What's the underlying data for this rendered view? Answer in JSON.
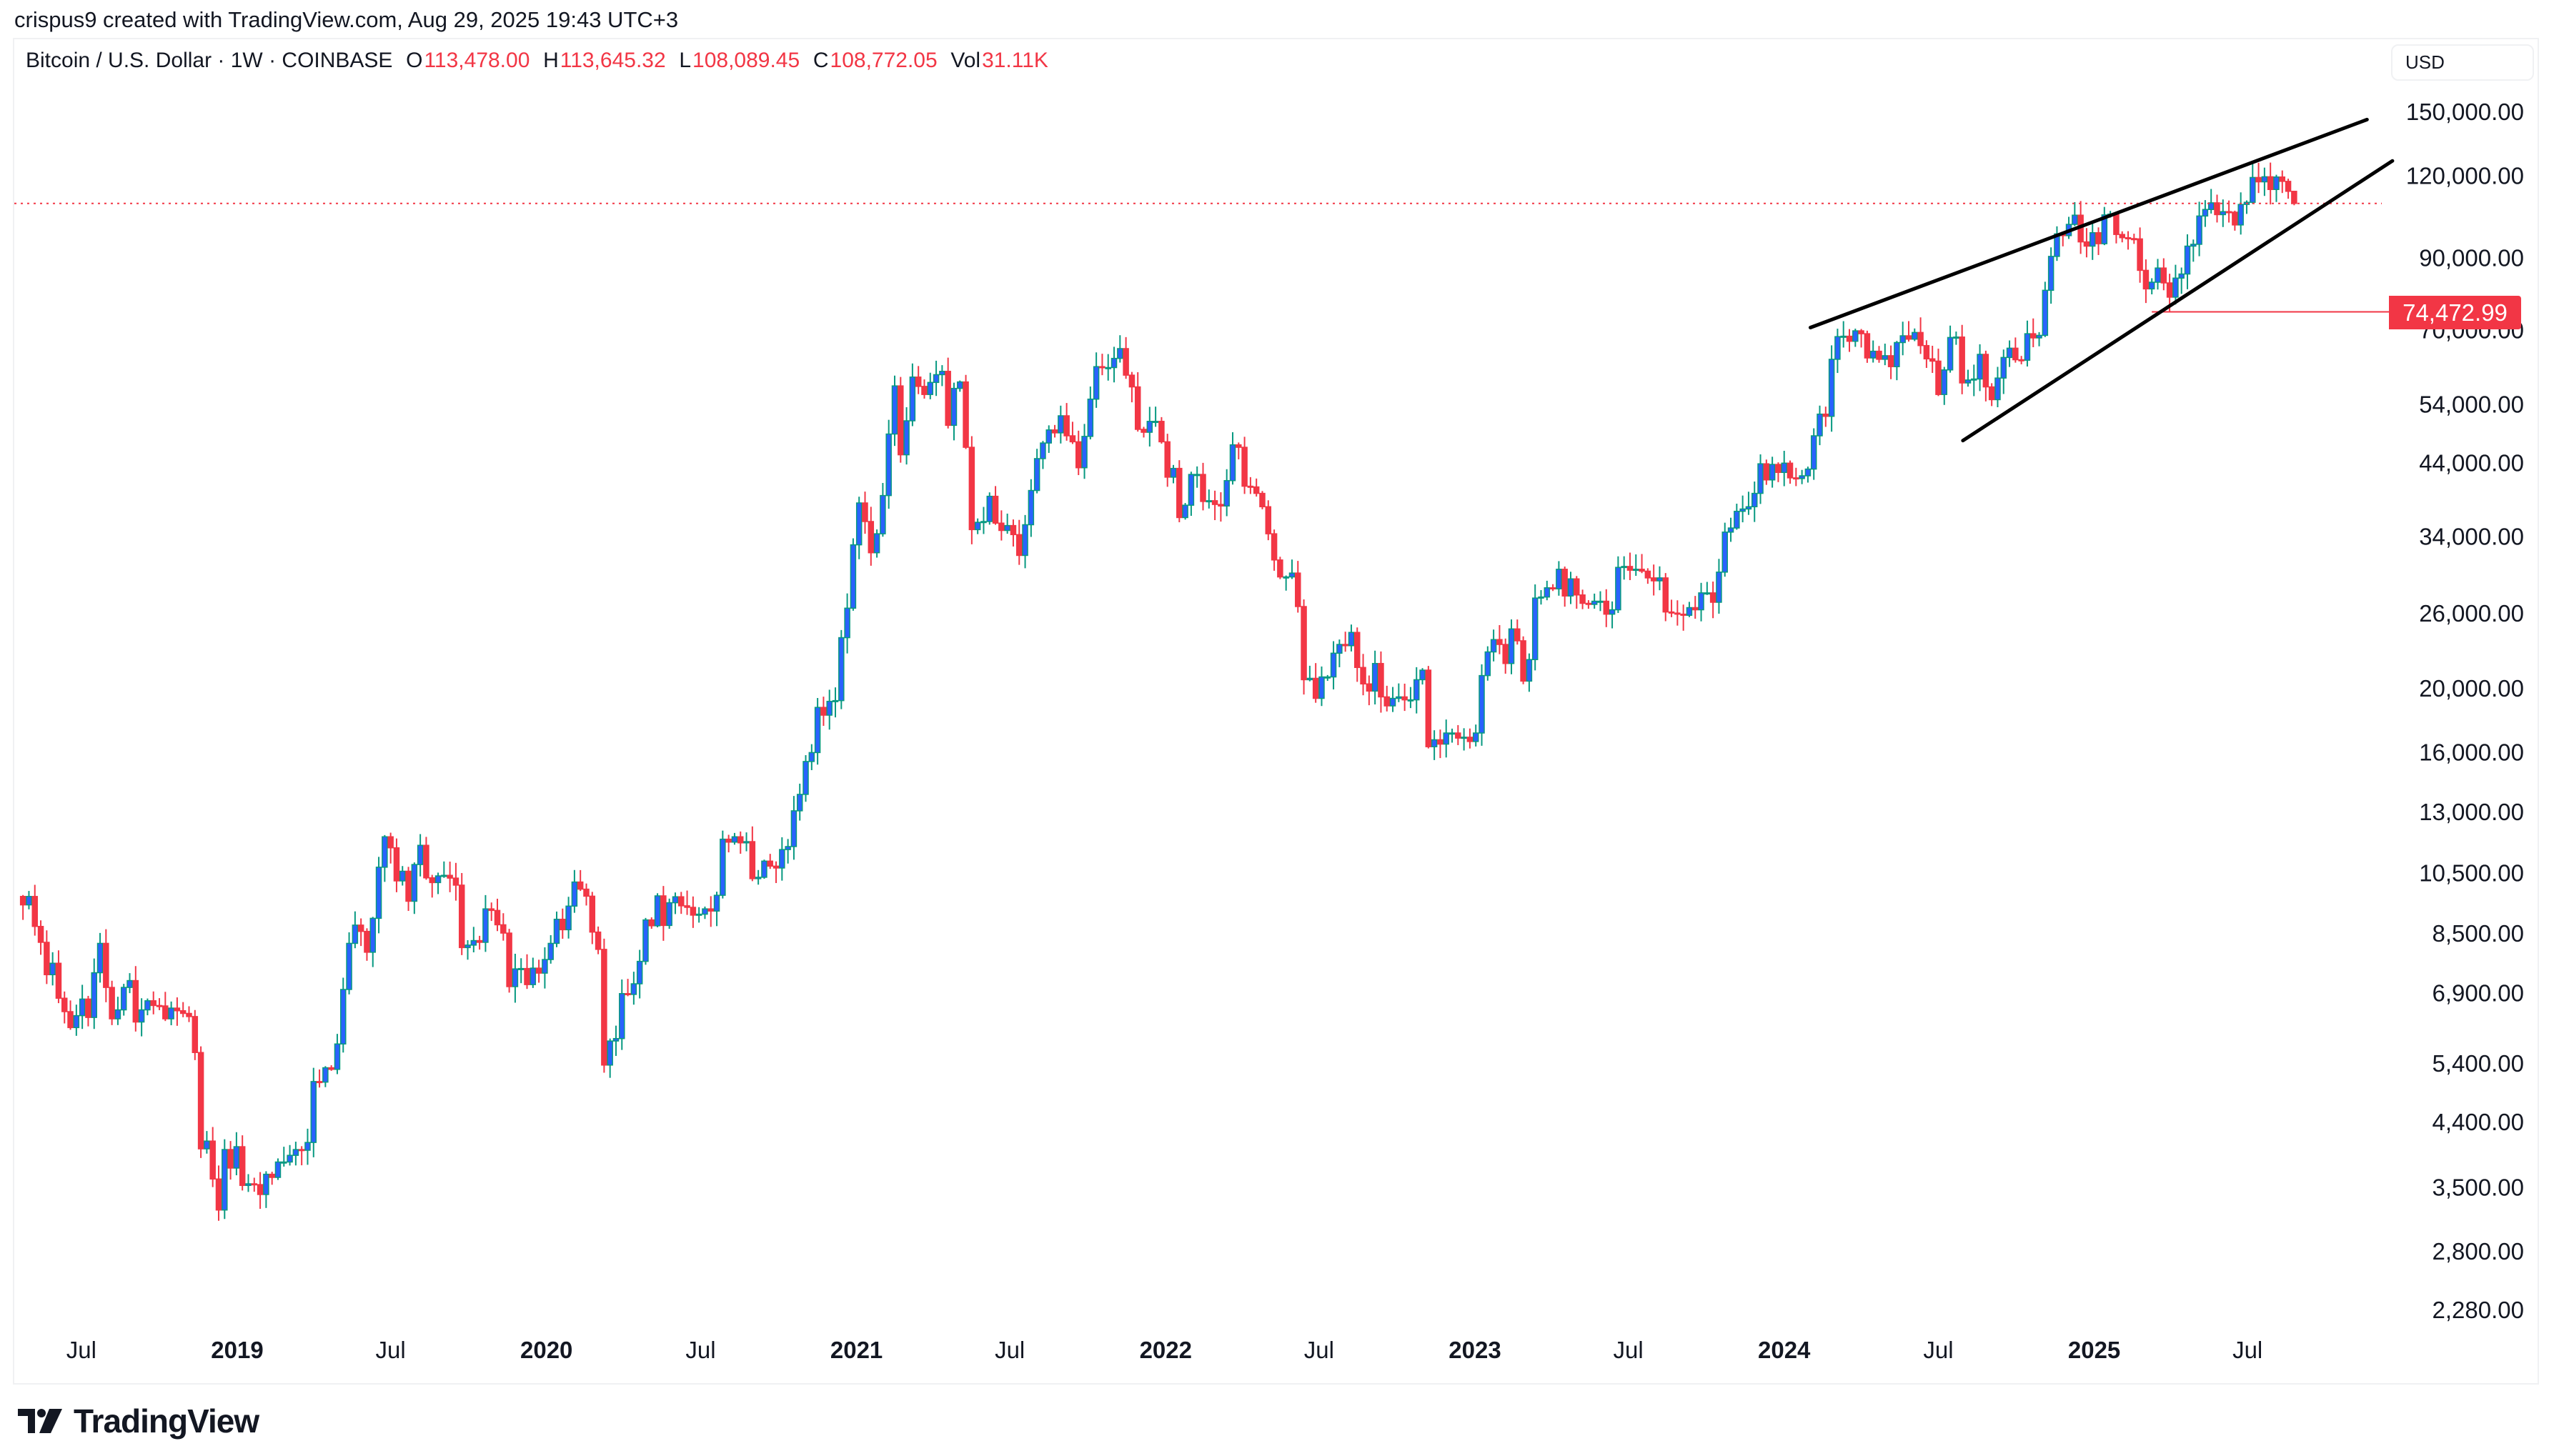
{
  "credit": "crispus9 created with TradingView.com, Aug 29, 2025 19:43 UTC+3",
  "legend": {
    "symbol": "Bitcoin / U.S. Dollar · 1W · COINBASE",
    "o_label": "O",
    "o": "113,478.00",
    "h_label": "H",
    "h": "113,645.32",
    "l_label": "L",
    "l": "108,089.45",
    "c_label": "C",
    "c": "108,772.05",
    "vol_label": "Vol",
    "vol": "31.11K"
  },
  "currency_button": "USD",
  "logo_text": "TradingView",
  "colors": {
    "up_body": "#2962ff",
    "up_border": "#089981",
    "down": "#f23645",
    "trendline": "#000000"
  },
  "chart_data": {
    "type": "candlestick",
    "interval": "1W",
    "y_scale": "log",
    "ylim": [
      2000,
      175000
    ],
    "y_ticks": [
      150000,
      120000,
      90000,
      70000,
      54000,
      44000,
      34000,
      26000,
      20000,
      16000,
      13000,
      10500,
      8500,
      6900,
      5400,
      4400,
      3500,
      2800,
      2280
    ],
    "y_tick_labels": [
      "150,000.00",
      "120,000.00",
      "90,000.00",
      "70,000.00",
      "54,000.00",
      "44,000.00",
      "34,000.00",
      "26,000.00",
      "20,000.00",
      "16,000.00",
      "13,000.00",
      "10,500.00",
      "8,500.00",
      "6,900.00",
      "5,400.00",
      "4,400.00",
      "3,500.00",
      "2,800.00",
      "2,280.00"
    ],
    "x_ticks": [
      {
        "date": "2018-07-01",
        "label": "Jul",
        "bold": false
      },
      {
        "date": "2019-01-01",
        "label": "2019",
        "bold": true
      },
      {
        "date": "2019-07-01",
        "label": "Jul",
        "bold": false
      },
      {
        "date": "2020-01-01",
        "label": "2020",
        "bold": true
      },
      {
        "date": "2020-07-01",
        "label": "Jul",
        "bold": false
      },
      {
        "date": "2021-01-01",
        "label": "2021",
        "bold": true
      },
      {
        "date": "2021-07-01",
        "label": "Jul",
        "bold": false
      },
      {
        "date": "2022-01-01",
        "label": "2022",
        "bold": true
      },
      {
        "date": "2022-07-01",
        "label": "Jul",
        "bold": false
      },
      {
        "date": "2023-01-01",
        "label": "2023",
        "bold": true
      },
      {
        "date": "2023-07-01",
        "label": "Jul",
        "bold": false
      },
      {
        "date": "2024-01-01",
        "label": "2024",
        "bold": true
      },
      {
        "date": "2024-07-01",
        "label": "Jul",
        "bold": false
      },
      {
        "date": "2025-01-01",
        "label": "2025",
        "bold": true
      },
      {
        "date": "2025-07-01",
        "label": "Jul",
        "bold": false
      }
    ],
    "last_candle": {
      "open": 113478.0,
      "high": 113645.32,
      "low": 108089.45,
      "close": 108772.05
    },
    "weekly_close": [
      9380,
      9660,
      8700,
      8230,
      7350,
      7650,
      6770,
      6460,
      6110,
      6370,
      6750,
      6330,
      7400,
      8200,
      7030,
      6300,
      6500,
      7030,
      7200,
      6230,
      6500,
      6710,
      6600,
      6590,
      6300,
      6540,
      6480,
      6420,
      6350,
      5600,
      4000,
      4110,
      3600,
      3230,
      3990,
      3740,
      4030,
      3520,
      3540,
      3530,
      3410,
      3660,
      3620,
      3820,
      3820,
      3910,
      3990,
      3980,
      4090,
      5060,
      5050,
      5310,
      5280,
      5770,
      6980,
      8200,
      8740,
      8550,
      7950,
      8950,
      10700,
      11900,
      11450,
      10200,
      10550,
      9500,
      10800,
      11550,
      10310,
      10140,
      10380,
      10400,
      10300,
      10050,
      8080,
      8150,
      8280,
      8230,
      9250,
      9200,
      8750,
      8500,
      7050,
      7500,
      7510,
      7100,
      7520,
      7390,
      7750,
      8200,
      8920,
      8600,
      9340,
      10160,
      9910,
      9670,
      8530,
      8030,
      5360,
      5830,
      5880,
      6880,
      6860,
      7120,
      7700,
      8900,
      8720,
      9680,
      8730,
      9450,
      9650,
      9350,
      9300,
      9050,
      9080,
      9250,
      9180,
      9700,
      11800,
      11680,
      11900,
      11650,
      11700,
      10280,
      10330,
      10930,
      10740,
      10670,
      11380,
      11500,
      13030,
      13800,
      15480,
      15970,
      18700,
      18200,
      19100,
      19150,
      23860,
      26450,
      33000,
      38200,
      35800,
      32100,
      34300,
      39200,
      48600,
      57500,
      45200,
      50900,
      59300,
      57400,
      55800,
      58200,
      59800,
      60500,
      50100,
      57000,
      58300,
      46400,
      34800,
      35700,
      35800,
      39100,
      35600,
      34700,
      35300,
      34200,
      31800,
      35400,
      39900,
      44600,
      47100,
      49300,
      48800,
      51800,
      48300,
      47300,
      43200,
      48200,
      54900,
      61500,
      61300,
      61300,
      63300,
      65500,
      59700,
      57300,
      49400,
      48900,
      50800,
      50800,
      47300,
      41800,
      43100,
      36300,
      37900,
      42200,
      42200,
      38400,
      38500,
      38000,
      37800,
      41300,
      46800,
      46400,
      40500,
      40400,
      39500,
      37700,
      34300,
      31300,
      29500,
      29500,
      29900,
      26600,
      20600,
      20700,
      19300,
      20800,
      20800,
      22600,
      23300,
      23200,
      24300,
      21500,
      20300,
      19800,
      21800,
      19400,
      18800,
      19300,
      19400,
      19200,
      19200,
      20600,
      21300,
      16300,
      16700,
      16450,
      17100,
      17100,
      16800,
      16850,
      16600,
      17100,
      20900,
      22700,
      23700,
      23300,
      21800,
      24600,
      23600,
      20500,
      22100,
      27400,
      27500,
      28400,
      28300,
      30300,
      27600,
      29300,
      27700,
      26900,
      26800,
      27100,
      27100,
      25900,
      26300,
      30500,
      30600,
      30200,
      30300,
      30100,
      29400,
      29100,
      29400,
      26100,
      26000,
      25900,
      25800,
      26500,
      26300,
      27900,
      27900,
      27000,
      30000,
      34500,
      35000,
      37100,
      37400,
      37700,
      39500,
      43800,
      41400,
      43700,
      42500,
      43900,
      41700,
      41600,
      42000,
      43000,
      48300,
      52100,
      51700,
      63100,
      68300,
      68400,
      67200,
      69700,
      69000,
      63400,
      64900,
      63100,
      63900,
      61500,
      66900,
      68500,
      67700,
      69300,
      66200,
      63200,
      62700,
      55800,
      60800,
      68100,
      68200,
      58100,
      58700,
      58900,
      64200,
      57300,
      54800,
      59100,
      63500,
      65600,
      63000,
      62900,
      69000,
      68000,
      68600,
      80300,
      90400,
      97800,
      97200,
      101100,
      104400,
      95100,
      93700,
      98200,
      94500,
      104500,
      104800,
      97600,
      96500,
      96200,
      96100,
      86100,
      80700,
      82600,
      86800,
      82400,
      78400,
      83800,
      85000,
      93700,
      94300,
      104100,
      106500,
      109000,
      104600,
      105700,
      105500,
      100900,
      108400,
      109200,
      119100,
      117300,
      119400,
      114200,
      119300,
      117500,
      113478,
      108772.05
    ],
    "annotations": {
      "upper_trendline": [
        {
          "date": "2024-02-01",
          "price": 70500
        },
        {
          "date": "2025-11-19",
          "price": 145800
        }
      ],
      "lower_trendline": [
        {
          "date": "2024-07-30",
          "price": 47500
        },
        {
          "date": "2025-12-19",
          "price": 126200
        }
      ],
      "support_line": {
        "date": "2025-03-10",
        "price": 74472.99,
        "label": "74,472.99"
      },
      "current_price_line": 108772.05
    }
  }
}
